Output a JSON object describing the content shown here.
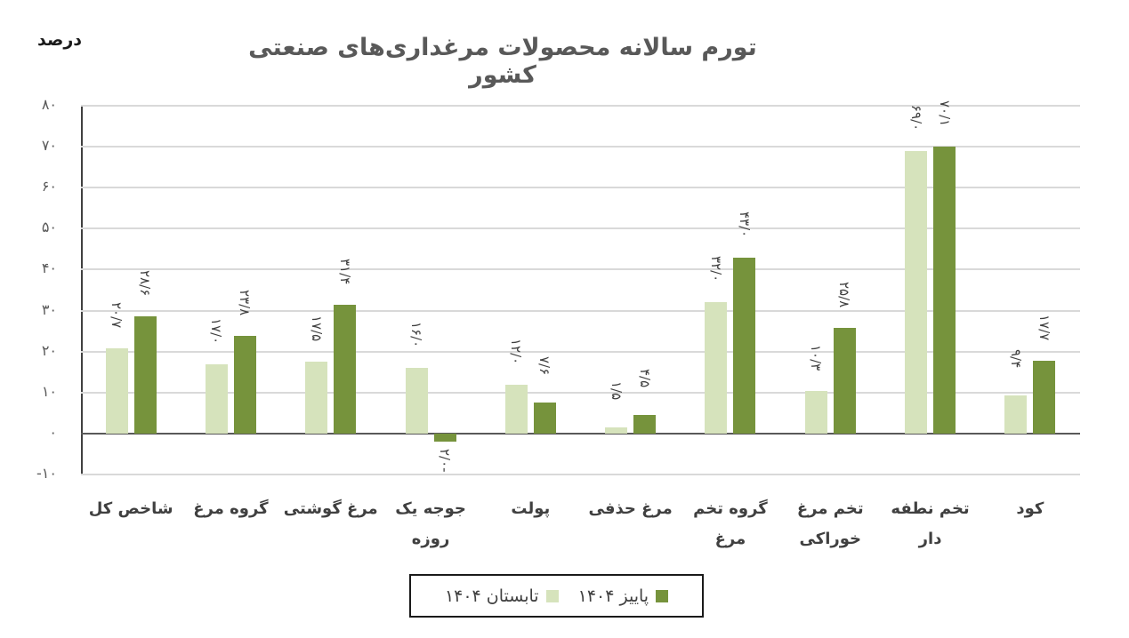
{
  "chart_data": {
    "type": "bar",
    "title": "تورم سالانه محصولات مرغداری‌های صنعتی کشور",
    "ylabel": "درصد",
    "xlabel": "",
    "ylim": [
      -10,
      80
    ],
    "yticks": [
      "-۱۰",
      "۰",
      "۱۰",
      "۲۰",
      "۳۰",
      "۴۰",
      "۵۰",
      "۶۰",
      "۷۰",
      "۸۰"
    ],
    "ytick_values": [
      -10,
      0,
      10,
      20,
      30,
      40,
      50,
      60,
      70,
      80
    ],
    "grid": true,
    "legend_position": "bottom",
    "categories": [
      "شاخص کل",
      "گروه مرغ",
      "مرغ گوشتی",
      "جوجه یک روزه",
      "پولت",
      "مرغ حذفی",
      "گروه تخم مرغ",
      "تخم مرغ خوراکی",
      "تخم نطفه دار",
      "کود"
    ],
    "series": [
      {
        "name": "تابستان ۱۴۰۴",
        "color": "#d6e3bc",
        "values": [
          20.7,
          17.0,
          17.5,
          16.0,
          12.0,
          1.5,
          32.0,
          10.3,
          69.0,
          9.4
        ],
        "labels": [
          "۲۰/۷",
          "۱۷/۰",
          "۱۷/۵",
          "۱۶/۰",
          "۱۲/۰",
          "۱/۵",
          "۳۲/۰",
          "۱۰/۳",
          "۶۹/۰",
          "۹/۴"
        ]
      },
      {
        "name": "پاییز ۱۴۰۴",
        "color": "#76933c",
        "values": [
          28.6,
          23.8,
          31.4,
          -2.0,
          7.6,
          4.5,
          43.0,
          25.8,
          70.1,
          17.7
        ],
        "labels": [
          "۲۸/۶",
          "۲۳/۸",
          "۳۱/۴",
          "-۲/۰",
          "۷/۶",
          "۴/۵",
          "۴۳/۰",
          "۲۵/۸",
          "۷۰/۱",
          "۱۷/۷"
        ]
      }
    ]
  },
  "header": {
    "unit": "درصد",
    "title": "تورم سالانه محصولات مرغداری‌های صنعتی کشور"
  },
  "axis": {
    "ticks": [
      {
        "label": "۸۰"
      },
      {
        "label": "۷۰"
      },
      {
        "label": "۶۰"
      },
      {
        "label": "۵۰"
      },
      {
        "label": "۴۰"
      },
      {
        "label": "۳۰"
      },
      {
        "label": "۲۰"
      },
      {
        "label": "۱۰"
      },
      {
        "label": "۰"
      },
      {
        "label": "-۱۰"
      }
    ]
  },
  "categories": [
    {
      "line1": "شاخص کل",
      "line2": ""
    },
    {
      "line1": "گروه مرغ",
      "line2": ""
    },
    {
      "line1": "مرغ گوشتی",
      "line2": ""
    },
    {
      "line1": "جوجه یک",
      "line2": "روزه"
    },
    {
      "line1": "پولت",
      "line2": ""
    },
    {
      "line1": "مرغ حذفی",
      "line2": ""
    },
    {
      "line1": "گروه تخم",
      "line2": "مرغ"
    },
    {
      "line1": "تخم مرغ",
      "line2": "خوراکی"
    },
    {
      "line1": "تخم نطفه دار",
      "line2": ""
    },
    {
      "line1": "کود",
      "line2": ""
    }
  ],
  "legend": {
    "summer": {
      "label": "تابستان ۱۴۰۴",
      "color": "#d6e3bc"
    },
    "autumn": {
      "label": "پاییز ۱۴۰۴",
      "color": "#76933c"
    }
  }
}
